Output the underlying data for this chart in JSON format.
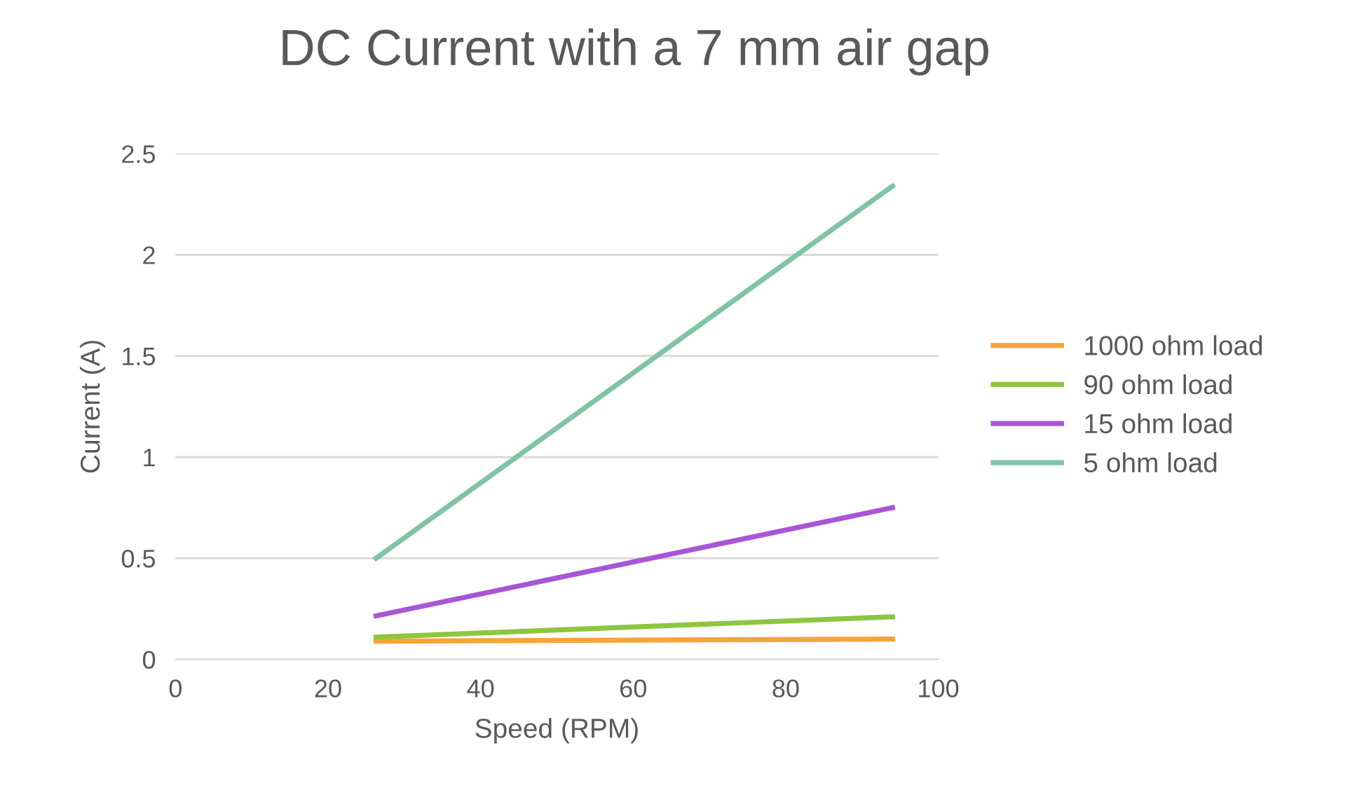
{
  "chart_data": {
    "type": "line",
    "title": "DC Current with a 7 mm air gap",
    "xlabel": "Speed (RPM)",
    "ylabel": "Current (A)",
    "xlim": [
      0,
      100
    ],
    "xticks": [
      0,
      20,
      40,
      60,
      80,
      100
    ],
    "ylim": [
      0,
      2.5
    ],
    "yticks": [
      0,
      0.5,
      1,
      1.5,
      2,
      2.5
    ],
    "grid": "y",
    "legend": "right",
    "marker": "none",
    "line_style": "solid",
    "x": [
      26.3,
      94
    ],
    "series": [
      {
        "name": "1000 ohm load",
        "color": "#f5a43a",
        "values": [
          0.09,
          0.1
        ]
      },
      {
        "name": "90 ohm load",
        "color": "#8dc63f",
        "values": [
          0.11,
          0.21
        ]
      },
      {
        "name": "15 ohm load",
        "color": "#a855d6",
        "values": [
          0.215,
          0.75
        ]
      },
      {
        "name": "5 ohm load",
        "color": "#7fc4a4",
        "values": [
          0.5,
          2.34
        ]
      }
    ]
  }
}
